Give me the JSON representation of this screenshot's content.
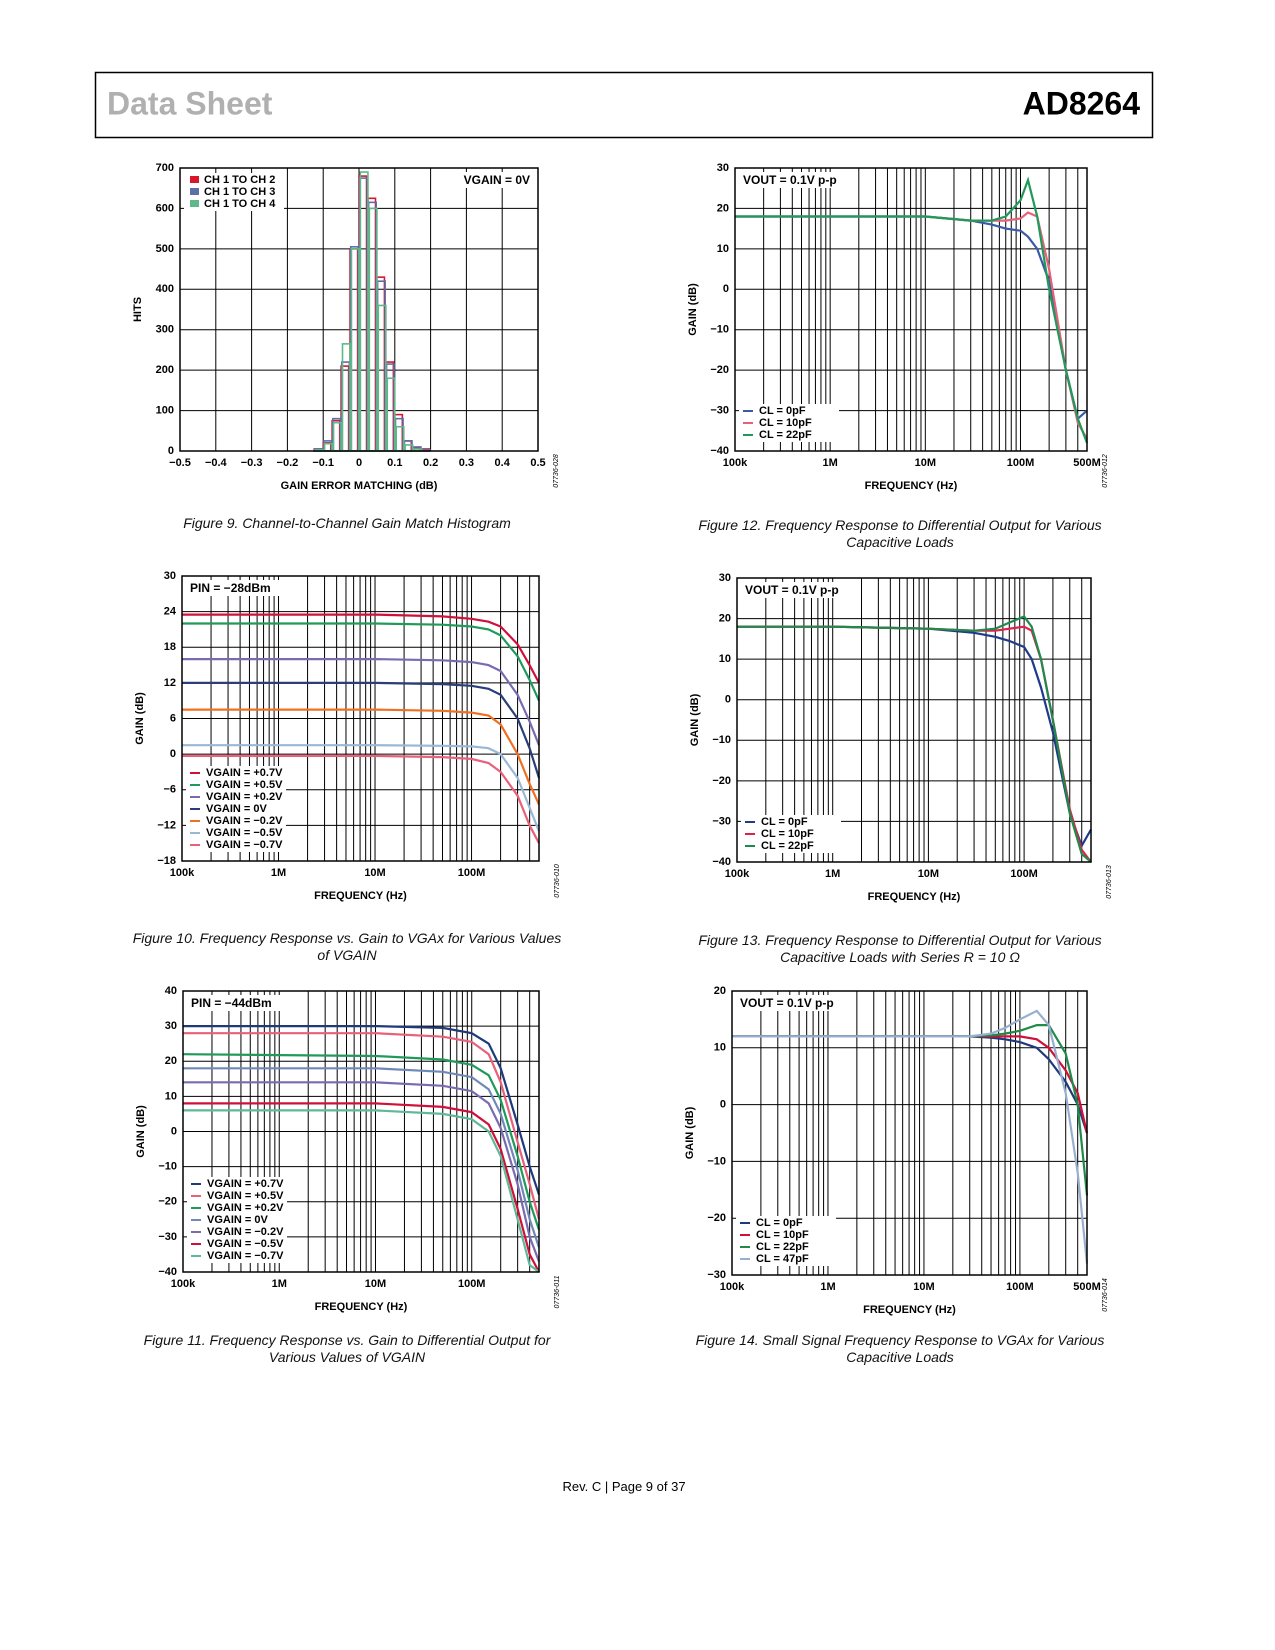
{
  "header": {
    "left": "Data Sheet",
    "right": "AD8264"
  },
  "footer": "Rev. C | Page 9 of 37",
  "chart_data": [
    {
      "type": "histogram",
      "caption": "Figure 9. Channel-to-Channel Gain Match Histogram",
      "code": "07736-028",
      "xlabel": "GAIN ERROR MATCHING (dB)",
      "ylabel": "HITS",
      "annotation": "VGAIN = 0V",
      "annotation_position": "upper right",
      "legend": "upper left",
      "grid": true,
      "bins": [
        -0.125,
        -0.1,
        -0.075,
        -0.05,
        -0.025,
        0,
        0.025,
        0.05,
        0.075,
        0.1,
        0.125,
        0.15,
        0.175,
        0.2
      ],
      "series": [
        {
          "name": "CH 1 TO CH 2",
          "color": "#d7182a",
          "values": [
            5,
            20,
            75,
            210,
            500,
            680,
            625,
            430,
            220,
            90,
            25,
            8,
            5
          ]
        },
        {
          "name": "CH 1 TO CH 3",
          "color": "#5c6fa8",
          "values": [
            5,
            25,
            80,
            220,
            505,
            675,
            615,
            420,
            215,
            80,
            25,
            10,
            3
          ]
        },
        {
          "name": "CH 1 TO CH 4",
          "color": "#5fb88a",
          "values": [
            3,
            18,
            70,
            265,
            500,
            690,
            600,
            360,
            180,
            60,
            15,
            5,
            0
          ]
        }
      ],
      "xlim": [
        -0.5,
        0.5
      ],
      "xticks": [
        {
          "value": -0.5,
          "label": "−0.5"
        },
        {
          "value": -0.4,
          "label": "−0.4"
        },
        {
          "value": -0.3,
          "label": "−0.3"
        },
        {
          "value": -0.2,
          "label": "−0.2"
        },
        {
          "value": -0.1,
          "label": "−0.1"
        },
        0,
        0.1,
        0.2,
        0.3,
        0.4,
        0.5
      ],
      "ylim": [
        0,
        700
      ],
      "yticks": [
        0,
        100,
        200,
        300,
        400,
        500,
        600,
        700
      ]
    },
    {
      "type": "line",
      "caption": "Figure 12. Frequency Response to Differential Output for Various Capacitive Loads",
      "code": "07736-012",
      "xlabel": "FREQUENCY (Hz)",
      "ylabel": "GAIN (dB)",
      "annotation": "VOUT = 0.1V p-p",
      "annotation_position": "upper left",
      "legend": "lower left",
      "grid": true,
      "xscale": "log",
      "x": [
        100000,
        1000000,
        10000000,
        30000000,
        50000000,
        70000000,
        100000000,
        120000000,
        150000000,
        200000000,
        300000000,
        400000000,
        500000000
      ],
      "series": [
        {
          "name": "CL = 0pF",
          "color": "#3a5aa8",
          "values": [
            18,
            18,
            18,
            17,
            16,
            15,
            14.5,
            13,
            10,
            2,
            -20,
            -32,
            -30
          ]
        },
        {
          "name": "CL = 10pF",
          "color": "#e8607a",
          "values": [
            18,
            18,
            18,
            17,
            17,
            17,
            17.5,
            19,
            18,
            5,
            -20,
            -33,
            -37
          ]
        },
        {
          "name": "CL = 22pF",
          "color": "#1f9a5a",
          "values": [
            18,
            18,
            18,
            17,
            17,
            18,
            22,
            27,
            18,
            0,
            -20,
            -32,
            -38
          ]
        }
      ],
      "xlim": [
        100000,
        500000000
      ],
      "xticks": [
        {
          "value": 100000,
          "label": "100k"
        },
        {
          "value": 1000000,
          "label": "1M"
        },
        {
          "value": 10000000,
          "label": "10M"
        },
        {
          "value": 100000000,
          "label": "100M"
        },
        {
          "value": 500000000,
          "label": "500M"
        }
      ],
      "ylim": [
        -40,
        30
      ],
      "yticks": [
        {
          "value": -40,
          "label": "−40"
        },
        {
          "value": -30,
          "label": "−30"
        },
        {
          "value": -20,
          "label": "−20"
        },
        {
          "value": -10,
          "label": "−10"
        },
        0,
        10,
        20,
        30
      ]
    },
    {
      "type": "line",
      "caption": "Figure 10. Frequency Response vs. Gain to VGAx for Various Values of VGAIN",
      "code": "07736-010",
      "xlabel": "FREQUENCY (Hz)",
      "ylabel": "GAIN (dB)",
      "annotation": "PIN = −28dBm",
      "annotation_position": "upper left",
      "legend": "lower left",
      "grid": true,
      "xscale": "log",
      "x": [
        100000,
        10000000,
        50000000,
        100000000,
        150000000,
        200000000,
        300000000,
        400000000,
        500000000
      ],
      "series": [
        {
          "name": "VGAIN = +0.7V",
          "color": "#d0103a",
          "values": [
            23.5,
            23.5,
            23.2,
            22.8,
            22.3,
            21.5,
            18.5,
            15,
            12
          ]
        },
        {
          "name": "VGAIN = +0.5V",
          "color": "#1f9a5a",
          "values": [
            22,
            22,
            21.8,
            21.5,
            21,
            20,
            16.5,
            12.5,
            9
          ]
        },
        {
          "name": "VGAIN = +0.2V",
          "color": "#7a6ab0",
          "values": [
            16,
            16,
            15.8,
            15.5,
            15,
            14,
            10,
            5.5,
            1.5
          ]
        },
        {
          "name": "VGAIN = 0V",
          "color": "#2a3f7a",
          "values": [
            12,
            12,
            11.8,
            11.5,
            11,
            10,
            6,
            1,
            -4
          ]
        },
        {
          "name": "VGAIN = −0.2V",
          "color": "#f07020",
          "values": [
            7.5,
            7.5,
            7.3,
            7,
            6.5,
            5,
            0,
            -5,
            -8.5
          ]
        },
        {
          "name": "VGAIN = −0.5V",
          "color": "#98b8d8",
          "values": [
            1.5,
            1.5,
            1.4,
            1.3,
            1,
            0,
            -4,
            -9,
            -13
          ]
        },
        {
          "name": "VGAIN = −0.7V",
          "color": "#e8607a",
          "values": [
            -0.3,
            -0.3,
            -0.5,
            -0.8,
            -1.5,
            -3,
            -7,
            -12,
            -15
          ]
        }
      ],
      "xlim": [
        100000,
        500000000
      ],
      "xticks": [
        {
          "value": 100000,
          "label": "100k"
        },
        {
          "value": 1000000,
          "label": "1M"
        },
        {
          "value": 10000000,
          "label": "10M"
        },
        {
          "value": 100000000,
          "label": "100M"
        }
      ],
      "ylim": [
        -18,
        30
      ],
      "yticks": [
        {
          "value": -18,
          "label": "−18"
        },
        {
          "value": -12,
          "label": "−12"
        },
        {
          "value": -6,
          "label": "−6"
        },
        0,
        6,
        12,
        18,
        24,
        30
      ]
    },
    {
      "type": "line",
      "caption": "Figure 13. Frequency Response to Differential Output for Various Capacitive Loads with Series R = 10 Ω",
      "code": "07736-013",
      "xlabel": "FREQUENCY (Hz)",
      "ylabel": "GAIN (dB)",
      "annotation": "VOUT = 0.1V p-p",
      "annotation_position": "upper left",
      "legend": "lower left",
      "grid": true,
      "xscale": "log",
      "x": [
        100000,
        1000000,
        10000000,
        30000000,
        50000000,
        70000000,
        100000000,
        120000000,
        150000000,
        200000000,
        300000000,
        400000000,
        500000000
      ],
      "series": [
        {
          "name": "CL = 0pF",
          "color": "#1f3a8a",
          "values": [
            18,
            18,
            17.5,
            16.5,
            15.5,
            14.5,
            13,
            10,
            3,
            -8,
            -28,
            -36,
            -32
          ]
        },
        {
          "name": "CL = 10pF",
          "color": "#e0204a",
          "values": [
            18,
            18,
            17.5,
            17,
            17,
            17.5,
            18,
            17,
            10,
            -5,
            -27,
            -37,
            -40
          ]
        },
        {
          "name": "CL = 22pF",
          "color": "#1f8a4a",
          "values": [
            18,
            18,
            17.5,
            17,
            17.5,
            19,
            20.5,
            18,
            10,
            -5,
            -28,
            -38,
            -40
          ]
        }
      ],
      "xlim": [
        100000,
        500000000
      ],
      "xticks": [
        {
          "value": 100000,
          "label": "100k"
        },
        {
          "value": 1000000,
          "label": "1M"
        },
        {
          "value": 10000000,
          "label": "10M"
        },
        {
          "value": 100000000,
          "label": "100M"
        }
      ],
      "ylim": [
        -40,
        30
      ],
      "yticks": [
        {
          "value": -40,
          "label": "−40"
        },
        {
          "value": -30,
          "label": "−30"
        },
        {
          "value": -20,
          "label": "−20"
        },
        {
          "value": -10,
          "label": "−10"
        },
        0,
        10,
        20,
        30
      ]
    },
    {
      "type": "line",
      "caption": "Figure 11. Frequency Response vs. Gain to Differential Output for Various Values of VGAIN",
      "code": "07736-011",
      "xlabel": "FREQUENCY (Hz)",
      "ylabel": "GAIN (dB)",
      "annotation": "PIN = −44dBm",
      "annotation_position": "upper left",
      "legend": "lower left",
      "grid": true,
      "xscale": "log",
      "x": [
        100000,
        10000000,
        50000000,
        100000000,
        150000000,
        200000000,
        300000000,
        400000000,
        500000000
      ],
      "series": [
        {
          "name": "VGAIN = +0.7V",
          "color": "#1f3a7a",
          "values": [
            30,
            30,
            29.5,
            28,
            25,
            18,
            2,
            -10,
            -18
          ]
        },
        {
          "name": "VGAIN = +0.5V",
          "color": "#e8607a",
          "values": [
            28,
            28,
            27,
            25.5,
            22,
            14,
            -3,
            -15,
            -25
          ]
        },
        {
          "name": "VGAIN = +0.2V",
          "color": "#1f9a5a",
          "values": [
            22,
            21.5,
            20.5,
            19,
            16,
            9,
            -7,
            -20,
            -28
          ]
        },
        {
          "name": "VGAIN = 0V",
          "color": "#7088b8",
          "values": [
            18,
            18,
            17,
            15.5,
            12,
            5,
            -11,
            -25,
            -33
          ]
        },
        {
          "name": "VGAIN = −0.2V",
          "color": "#7a6ab0",
          "values": [
            14,
            14,
            13,
            11.5,
            8,
            1,
            -15,
            -30,
            -37
          ]
        },
        {
          "name": "VGAIN = −0.5V",
          "color": "#d0103a",
          "values": [
            8,
            8,
            7,
            5.5,
            2,
            -5,
            -22,
            -35,
            -40
          ]
        },
        {
          "name": "VGAIN = −0.7V",
          "color": "#5fb898",
          "values": [
            6,
            6,
            5,
            3.5,
            0,
            -7,
            -25,
            -38,
            -40
          ]
        }
      ],
      "xlim": [
        100000,
        500000000
      ],
      "xticks": [
        {
          "value": 100000,
          "label": "100k"
        },
        {
          "value": 1000000,
          "label": "1M"
        },
        {
          "value": 10000000,
          "label": "10M"
        },
        {
          "value": 100000000,
          "label": "100M"
        }
      ],
      "ylim": [
        -40,
        40
      ],
      "yticks": [
        {
          "value": -40,
          "label": "−40"
        },
        {
          "value": -30,
          "label": "−30"
        },
        {
          "value": -20,
          "label": "−20"
        },
        {
          "value": -10,
          "label": "−10"
        },
        0,
        10,
        20,
        30,
        40
      ]
    },
    {
      "type": "line",
      "caption": "Figure 14. Small Signal Frequency Response to VGAx for Various Capacitive Loads",
      "code": "07736-014",
      "xlabel": "FREQUENCY (Hz)",
      "ylabel": "GAIN (dB)",
      "annotation": "VOUT = 0.1V p-p",
      "annotation_position": "upper left",
      "legend": "lower left",
      "grid": true,
      "xscale": "log",
      "x": [
        100000,
        1000000,
        10000000,
        30000000,
        50000000,
        70000000,
        100000000,
        150000000,
        200000000,
        300000000,
        400000000,
        500000000
      ],
      "series": [
        {
          "name": "CL = 0pF",
          "color": "#1f3a7a",
          "values": [
            12,
            12,
            12,
            12,
            11.8,
            11.5,
            11,
            10,
            8,
            4,
            0,
            -5
          ]
        },
        {
          "name": "CL = 10pF",
          "color": "#d0103a",
          "values": [
            12,
            12,
            12,
            12,
            12,
            12,
            12,
            11.5,
            10,
            6,
            2,
            -5
          ]
        },
        {
          "name": "CL = 22pF",
          "color": "#1f8a4a",
          "values": [
            12,
            12,
            12,
            12,
            12.2,
            12.5,
            13,
            14,
            14,
            9,
            0,
            -16
          ]
        },
        {
          "name": "CL = 47pF",
          "color": "#98b0d0",
          "values": [
            12,
            12,
            12,
            12,
            12.5,
            13.5,
            15,
            16.5,
            14,
            2,
            -12,
            -28
          ]
        }
      ],
      "xlim": [
        100000,
        500000000
      ],
      "xticks": [
        {
          "value": 100000,
          "label": "100k"
        },
        {
          "value": 1000000,
          "label": "1M"
        },
        {
          "value": 10000000,
          "label": "10M"
        },
        {
          "value": 100000000,
          "label": "100M"
        },
        {
          "value": 500000000,
          "label": "500M"
        }
      ],
      "ylim": [
        -30,
        20
      ],
      "yticks": [
        {
          "value": -30,
          "label": "−30"
        },
        {
          "value": -20,
          "label": "−20"
        },
        {
          "value": -10,
          "label": "−10"
        },
        0,
        10,
        20
      ]
    }
  ]
}
